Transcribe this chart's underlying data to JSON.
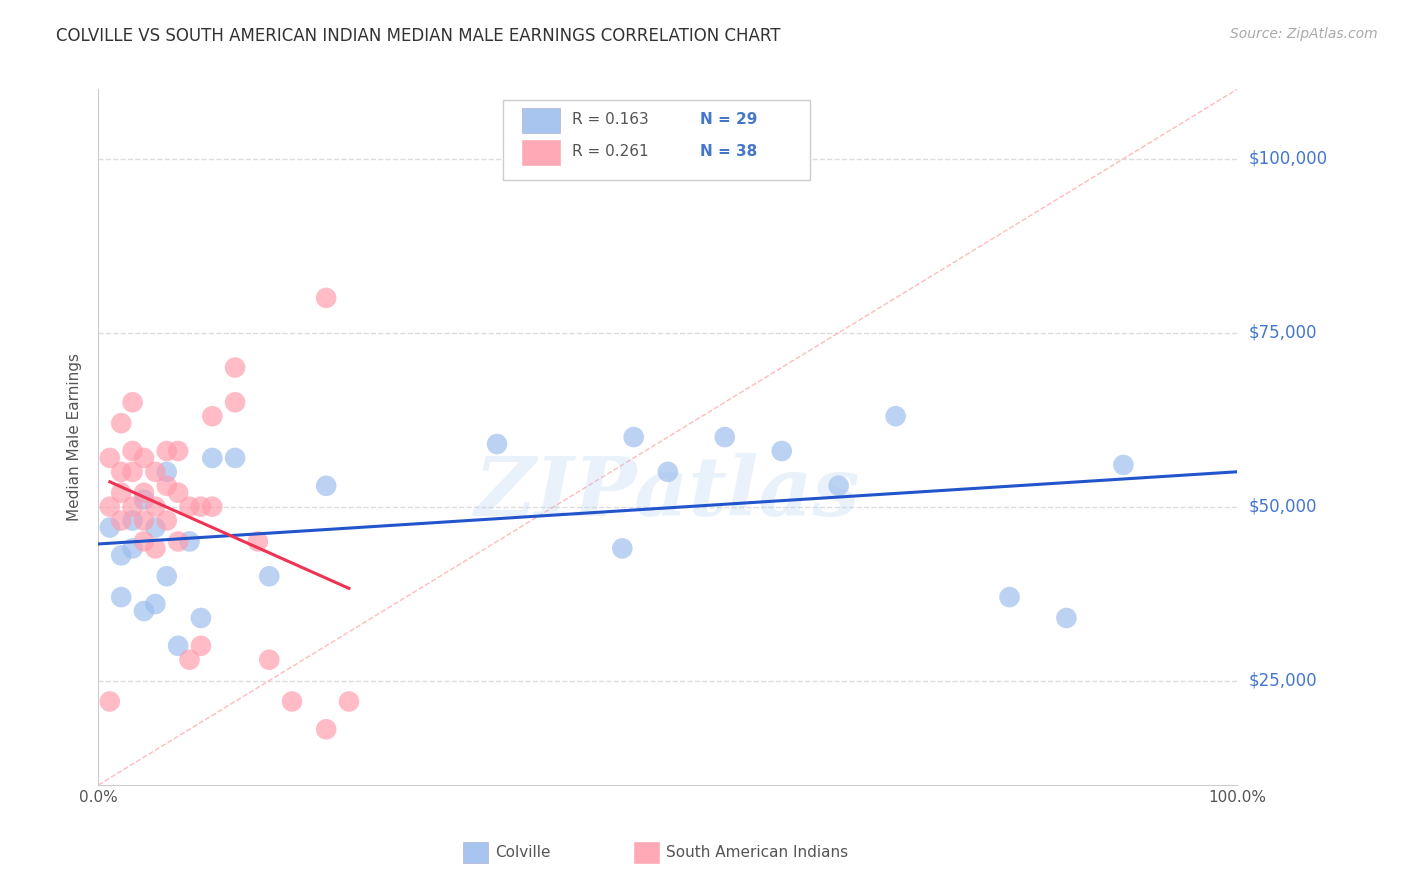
{
  "title": "COLVILLE VS SOUTH AMERICAN INDIAN MEDIAN MALE EARNINGS CORRELATION CHART",
  "source": "Source: ZipAtlas.com",
  "ylabel": "Median Male Earnings",
  "xlim": [
    0,
    1
  ],
  "ylim": [
    10000,
    110000
  ],
  "colville_color": "#99bbee",
  "south_american_color": "#ff99aa",
  "colville_line_color": "#2255cc",
  "south_american_line_color": "#ee3355",
  "colville_R": 0.163,
  "colville_N": 29,
  "south_american_R": 0.261,
  "south_american_N": 38,
  "watermark": "ZIPatlas",
  "colville_x": [
    0.01,
    0.02,
    0.02,
    0.03,
    0.03,
    0.04,
    0.04,
    0.05,
    0.05,
    0.06,
    0.06,
    0.07,
    0.08,
    0.09,
    0.1,
    0.12,
    0.15,
    0.2,
    0.35,
    0.46,
    0.47,
    0.5,
    0.55,
    0.6,
    0.65,
    0.7,
    0.8,
    0.85,
    0.9
  ],
  "colville_y": [
    47000,
    43000,
    37000,
    48000,
    44000,
    51000,
    35000,
    47000,
    36000,
    55000,
    40000,
    30000,
    45000,
    34000,
    57000,
    57000,
    40000,
    53000,
    59000,
    44000,
    60000,
    55000,
    60000,
    58000,
    53000,
    63000,
    37000,
    34000,
    56000
  ],
  "south_american_x": [
    0.01,
    0.01,
    0.01,
    0.02,
    0.02,
    0.02,
    0.02,
    0.03,
    0.03,
    0.03,
    0.03,
    0.04,
    0.04,
    0.04,
    0.04,
    0.05,
    0.05,
    0.05,
    0.06,
    0.06,
    0.06,
    0.07,
    0.07,
    0.07,
    0.08,
    0.08,
    0.09,
    0.09,
    0.1,
    0.1,
    0.12,
    0.12,
    0.14,
    0.15,
    0.17,
    0.2,
    0.2,
    0.22
  ],
  "south_american_y": [
    22000,
    50000,
    57000,
    48000,
    52000,
    55000,
    62000,
    50000,
    55000,
    58000,
    65000,
    45000,
    48000,
    52000,
    57000,
    44000,
    50000,
    55000,
    48000,
    53000,
    58000,
    45000,
    52000,
    58000,
    28000,
    50000,
    30000,
    50000,
    50000,
    63000,
    65000,
    70000,
    45000,
    28000,
    22000,
    80000,
    18000,
    22000
  ],
  "background_color": "#ffffff",
  "grid_color": "#dddddd",
  "title_color": "#333333",
  "ytick_color": "#4477cc",
  "n_value_color": "#4477cc",
  "r_value_color": "#4477cc",
  "source_color": "#aaaaaa"
}
